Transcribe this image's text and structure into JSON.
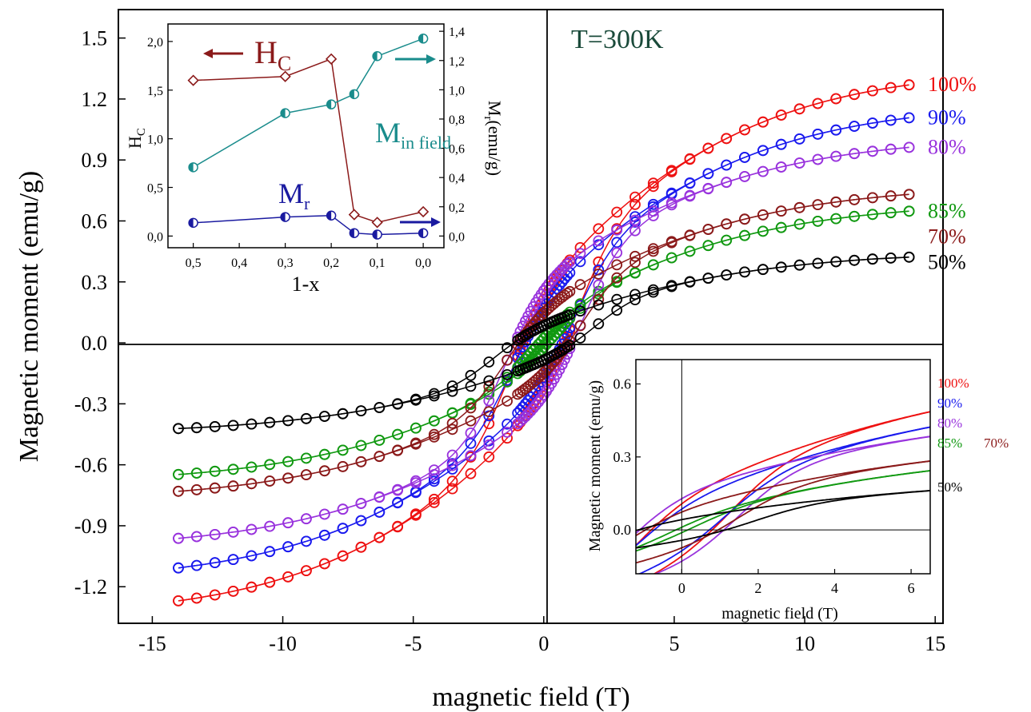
{
  "chart_data": [
    {
      "type": "scatter",
      "xlabel": "magnetic field (T)",
      "ylabel": "Magnetic moment (emu/g)",
      "xlim": [
        -16.3,
        15.3
      ],
      "ylim": [
        -1.38,
        1.64
      ],
      "xticks": [
        "-15",
        "-10",
        "-5",
        "0",
        "5",
        "10",
        "15"
      ],
      "xtick_values": [
        -15,
        -10,
        -5,
        0,
        5,
        10,
        15
      ],
      "yticks": [
        "-1.2",
        "-0.9",
        "-0.6",
        "-0.3",
        "0.0",
        "0.3",
        "0.6",
        "0.9",
        "1.2",
        "1.5"
      ],
      "ytick_values": [
        -1.2,
        -0.9,
        -0.6,
        -0.3,
        0.0,
        0.3,
        0.6,
        0.9,
        1.2,
        1.5
      ],
      "annotation": "T=300K",
      "markers": "open circles",
      "series": [
        {
          "name": "100%",
          "color": "#ee1111",
          "ms": 0.32,
          "hc": 1.3,
          "a": 1.0,
          "b": 0.7
        },
        {
          "name": "90%",
          "color": "#1a1aee",
          "ms": 0.27,
          "hc": 1.2,
          "a": 0.88,
          "b": 0.65
        },
        {
          "name": "85%",
          "color": "#119911",
          "ms": 0.12,
          "hc": 0.3,
          "a": 0.54,
          "b": 0.68
        },
        {
          "name": "80%",
          "color": "#9933dd",
          "ms": 0.35,
          "hc": 1.5,
          "a": 0.65,
          "b": 0.35
        },
        {
          "name": "70%",
          "color": "#8b1a1a",
          "ms": 0.2,
          "hc": 1.5,
          "a": 0.55,
          "b": 0.55
        },
        {
          "name": "50%",
          "color": "#000000",
          "ms": 0.1,
          "hc": 2.0,
          "a": 0.33,
          "b": 0.4
        }
      ]
    },
    {
      "type": "line",
      "xlabel": "1-x",
      "ylabel": "H",
      "ylabel_sub": "C",
      "y2label": "M",
      "y2label_sub": "r",
      "y2label_rest": "(emu/g)",
      "xlim": [
        0.555,
        -0.045
      ],
      "ylim": [
        -0.12,
        2.18
      ],
      "y2lim": [
        -0.08,
        1.45
      ],
      "xticks": [
        "0,5",
        "0,4",
        "0,3",
        "0,2",
        "0,1",
        "0,0"
      ],
      "xtick_values": [
        0.5,
        0.4,
        0.3,
        0.2,
        0.1,
        0.0
      ],
      "yticks": [
        "0,0",
        "0,5",
        "1,0",
        "1,5",
        "2,0"
      ],
      "ytick_values": [
        0.0,
        0.5,
        1.0,
        1.5,
        2.0
      ],
      "y2ticks": [
        "0,0",
        "0,2",
        "0,4",
        "0,6",
        "0,8",
        "1,0",
        "1,2",
        "1,4"
      ],
      "y2tick_values": [
        0.0,
        0.2,
        0.4,
        0.6,
        0.8,
        1.0,
        1.2,
        1.4
      ],
      "x": [
        0.5,
        0.3,
        0.2,
        0.15,
        0.1,
        0.0
      ],
      "series": [
        {
          "name": "H",
          "name_sub": "C",
          "color": "#8b1a1a",
          "axis": "left",
          "marker": "diamond",
          "values": [
            1.6,
            1.64,
            1.82,
            0.22,
            0.14,
            0.25
          ]
        },
        {
          "name": "M",
          "name_sub": "in field",
          "color": "#1a8c8c",
          "axis": "right",
          "marker": "half-circle",
          "values": [
            0.47,
            0.84,
            0.9,
            0.97,
            1.23,
            1.35
          ]
        },
        {
          "name": "M",
          "name_sub": "r",
          "color": "#1a1aa0",
          "axis": "right",
          "marker": "half-circle",
          "values": [
            0.09,
            0.13,
            0.14,
            0.02,
            0.01,
            0.02
          ]
        }
      ]
    },
    {
      "type": "line",
      "xlabel": "magnetic field (T)",
      "ylabel": "Magnetic moment (emu/g)",
      "xlim": [
        -1.2,
        6.5
      ],
      "ylim": [
        -0.18,
        0.7
      ],
      "xticks": [
        "0",
        "2",
        "4",
        "6"
      ],
      "xtick_values": [
        0,
        2,
        4,
        6
      ],
      "yticks": [
        "0.0",
        "0.3",
        "0.6"
      ],
      "ytick_values": [
        0.0,
        0.3,
        0.6
      ],
      "series": [
        {
          "name": "100%"
        },
        {
          "name": "90%"
        },
        {
          "name": "80%"
        },
        {
          "name": "85%"
        },
        {
          "name": "70%"
        },
        {
          "name": "50%"
        }
      ]
    }
  ]
}
